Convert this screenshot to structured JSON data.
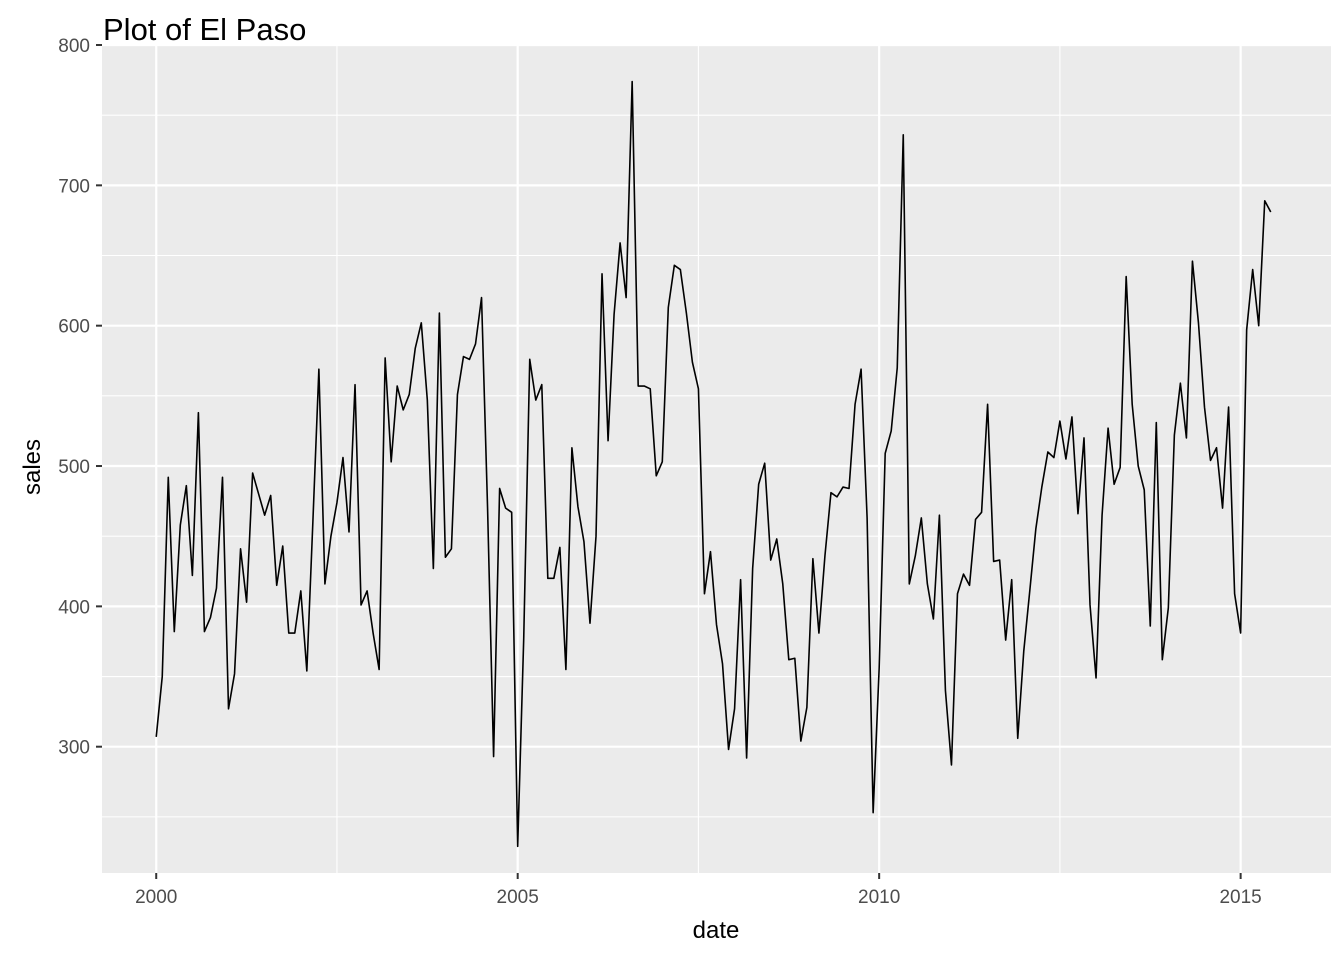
{
  "chart_data": {
    "type": "line",
    "title": "Plot of El Paso",
    "xlabel": "date",
    "ylabel": "sales",
    "x_ticks": [
      2000,
      2005,
      2010,
      2015
    ],
    "x_tick_labels": [
      "2000",
      "2005",
      "2010",
      "2015"
    ],
    "y_ticks": [
      300,
      400,
      500,
      600,
      700,
      800
    ],
    "y_tick_labels": [
      "300",
      "400",
      "500",
      "600",
      "700",
      "800"
    ],
    "xlim": [
      1999.25,
      2016.25
    ],
    "ylim": [
      210,
      800
    ],
    "grid": true,
    "panel_color": "#ebebeb",
    "line_color": "#000000",
    "x_start": "2000-01",
    "x_frequency": "monthly",
    "series": [
      {
        "values": [
          307,
          350,
          492,
          382,
          458,
          486,
          422,
          538,
          382,
          392,
          413,
          492,
          327,
          352,
          441,
          403,
          495,
          480,
          465,
          479,
          415,
          443,
          381,
          381,
          411,
          354,
          460,
          569,
          416,
          450,
          474,
          506,
          453,
          558,
          401,
          411,
          381,
          355,
          577,
          503,
          557,
          540,
          551,
          584,
          602,
          547,
          427,
          609,
          435,
          441,
          551,
          578,
          576,
          587,
          620,
          470,
          293,
          484,
          470,
          467,
          229,
          377,
          576,
          547,
          558,
          420,
          420,
          442,
          355,
          513,
          471,
          446,
          388,
          450,
          637,
          518,
          608,
          659,
          620,
          774,
          557,
          557,
          555,
          493,
          503,
          613,
          643,
          640,
          609,
          574,
          555,
          409,
          439,
          387,
          359,
          298,
          327,
          419,
          292,
          427,
          487,
          502,
          433,
          448,
          416,
          362,
          363,
          304,
          328,
          434,
          381,
          436,
          481,
          478,
          485,
          484,
          544,
          569,
          463,
          253,
          356,
          509,
          525,
          570,
          736,
          416,
          436,
          463,
          416,
          391,
          465,
          340,
          287,
          409,
          423,
          415,
          462,
          467,
          544,
          432,
          433,
          376,
          419,
          306,
          368,
          411,
          455,
          485,
          510,
          506,
          532,
          505,
          535,
          466,
          520,
          401,
          349,
          465,
          527,
          487,
          499,
          635,
          544,
          500,
          483,
          386,
          531,
          362,
          399,
          522,
          559,
          520,
          646,
          602,
          542,
          504,
          513,
          470,
          542,
          409,
          381,
          597,
          640,
          600,
          689,
          681
        ]
      }
    ]
  }
}
